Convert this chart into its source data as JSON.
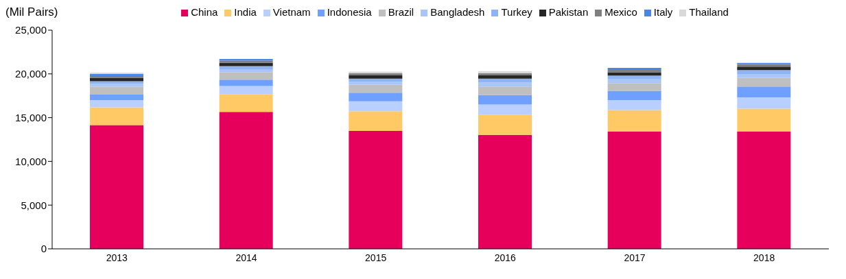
{
  "chart_data": {
    "type": "bar",
    "stacked": true,
    "ylabel": "(Mil Pairs)",
    "categories": [
      "2013",
      "2014",
      "2015",
      "2016",
      "2017",
      "2018"
    ],
    "series": [
      {
        "name": "China",
        "color": "#e6005c",
        "values": [
          14150,
          15660,
          13480,
          13030,
          13430,
          13400
        ]
      },
      {
        "name": "India",
        "color": "#ffca66",
        "values": [
          2040,
          2040,
          2260,
          2280,
          2440,
          2620
        ]
      },
      {
        "name": "Vietnam",
        "color": "#b8cfff",
        "values": [
          810,
          920,
          1130,
          1180,
          1130,
          1300
        ]
      },
      {
        "name": "Indonesia",
        "color": "#6fa0ff",
        "values": [
          640,
          710,
          980,
          1080,
          1070,
          1230
        ]
      },
      {
        "name": "Brazil",
        "color": "#bfbfbf",
        "values": [
          900,
          870,
          900,
          980,
          880,
          980
        ]
      },
      {
        "name": "Bangladesh",
        "color": "#a9c6f7",
        "values": [
          300,
          330,
          350,
          450,
          420,
          450
        ]
      },
      {
        "name": "Turkey",
        "color": "#8fb4f5",
        "values": [
          330,
          350,
          350,
          450,
          430,
          450
        ]
      },
      {
        "name": "Pakistan",
        "color": "#262626",
        "values": [
          380,
          380,
          380,
          380,
          380,
          400
        ]
      },
      {
        "name": "Mexico",
        "color": "#7f7f7f",
        "values": [
          200,
          250,
          230,
          250,
          280,
          300
        ]
      },
      {
        "name": "Italy",
        "color": "#4a86e8",
        "values": [
          250,
          200,
          null,
          null,
          230,
          130
        ]
      },
      {
        "name": "Thailand",
        "color": "#d9d9d9",
        "values": [
          150,
          null,
          200,
          230,
          null,
          null
        ]
      }
    ],
    "ylim": [
      0,
      25000
    ],
    "yticks": [
      0,
      {
        "value": 5000,
        "label": "5,000"
      },
      {
        "value": 10000,
        "label": "10,000"
      },
      {
        "value": 15000,
        "label": "15,000"
      },
      {
        "value": 20000,
        "label": "20,000"
      },
      {
        "value": 25000,
        "label": "25,000"
      }
    ],
    "legend": "top"
  }
}
